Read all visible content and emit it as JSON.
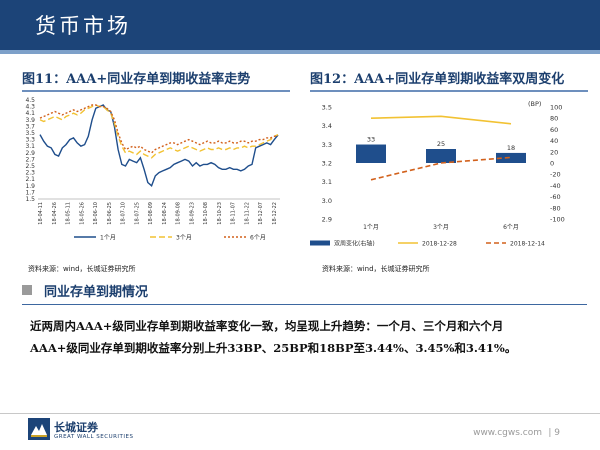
{
  "header": {
    "title": "货币市场"
  },
  "figure11": {
    "title": "图11：AAA+同业存单到期收益率走势",
    "source": "资料来源：wind，长城证券研究所",
    "chart_data": {
      "type": "line",
      "yticks": [
        "4.5",
        "4.3",
        "4.1",
        "3.9",
        "3.7",
        "3.5",
        "3.3",
        "3.1",
        "2.9",
        "2.7",
        "2.5",
        "2.3",
        "2.1",
        "1.9",
        "1.7",
        "1.5"
      ],
      "ylim": [
        1.5,
        4.5
      ],
      "xticks": [
        "18-04-11",
        "18-04-26",
        "18-05-11",
        "18-05-26",
        "18-06-10",
        "18-06-25",
        "18-07-10",
        "18-07-25",
        "18-08-09",
        "18-08-24",
        "18-09-08",
        "18-09-23",
        "18-10-08",
        "18-10-23",
        "18-11-07",
        "18-11-22",
        "18-12-07",
        "18-12-22"
      ],
      "legend_position": "bottom",
      "series": [
        {
          "name": "1个月",
          "color": "#1f4e8c",
          "dash": "solid",
          "values": [
            3.45,
            3.25,
            3.1,
            3.05,
            2.85,
            2.8,
            3.05,
            3.15,
            3.3,
            3.35,
            3.2,
            3.1,
            3.15,
            3.4,
            3.9,
            4.25,
            4.3,
            4.35,
            4.2,
            4.15,
            3.7,
            3.0,
            2.55,
            2.5,
            2.7,
            2.65,
            2.6,
            2.75,
            2.4,
            2.0,
            1.9,
            2.2,
            2.3,
            2.35,
            2.4,
            2.45,
            2.55,
            2.6,
            2.65,
            2.7,
            2.65,
            2.5,
            2.6,
            2.5,
            2.55,
            2.55,
            2.6,
            2.55,
            2.45,
            2.4,
            2.4,
            2.45,
            2.4,
            2.4,
            2.35,
            2.4,
            2.5,
            2.55,
            3.05,
            3.1,
            3.15,
            3.2,
            3.15,
            3.3,
            3.44
          ]
        },
        {
          "name": "3个月",
          "color": "#f2c233",
          "dash": "6,3",
          "values": [
            3.9,
            3.85,
            3.9,
            3.95,
            4.0,
            3.95,
            3.9,
            4.0,
            4.05,
            4.1,
            4.05,
            4.1,
            4.2,
            4.25,
            4.3,
            4.35,
            4.3,
            4.3,
            4.2,
            4.1,
            3.8,
            3.4,
            3.1,
            2.9,
            2.95,
            2.9,
            2.85,
            2.95,
            2.85,
            2.8,
            2.75,
            2.85,
            2.9,
            2.95,
            3.0,
            3.05,
            3.0,
            2.95,
            3.0,
            3.05,
            3.1,
            3.05,
            3.0,
            2.95,
            3.0,
            3.05,
            3.0,
            3.0,
            3.05,
            3.0,
            3.0,
            3.05,
            3.0,
            3.05,
            3.05,
            3.1,
            3.05,
            3.1,
            3.1,
            3.15,
            3.2,
            3.25,
            3.3,
            3.4,
            3.45
          ]
        },
        {
          "name": "6个月",
          "color": "#d2611c",
          "dash": "2,2",
          "values": [
            3.95,
            4.0,
            4.05,
            4.1,
            4.15,
            4.1,
            4.05,
            4.1,
            4.15,
            4.2,
            4.15,
            4.2,
            4.25,
            4.3,
            4.35,
            4.35,
            4.3,
            4.3,
            4.25,
            4.15,
            3.9,
            3.5,
            3.2,
            3.0,
            3.05,
            3.1,
            3.05,
            3.1,
            3.0,
            2.95,
            2.9,
            3.0,
            3.05,
            3.1,
            3.15,
            3.2,
            3.2,
            3.15,
            3.2,
            3.25,
            3.3,
            3.25,
            3.2,
            3.15,
            3.2,
            3.25,
            3.2,
            3.2,
            3.25,
            3.2,
            3.2,
            3.25,
            3.2,
            3.2,
            3.25,
            3.25,
            3.2,
            3.25,
            3.25,
            3.3,
            3.3,
            3.35,
            3.35,
            3.4,
            3.41
          ]
        }
      ]
    }
  },
  "figure12": {
    "title": "图12：AAA+同业存单到期收益率双周变化",
    "source": "资料来源：wind，长城证券研究所",
    "chart_data": {
      "type": "bar",
      "categories": [
        "1个月",
        "3个月",
        "6个月"
      ],
      "left_axis": {
        "ylim": [
          2.9,
          3.5
        ],
        "ticks": [
          "3.5",
          "3.4",
          "3.3",
          "3.2",
          "3.1",
          "3.0",
          "2.9"
        ]
      },
      "right_axis": {
        "unit": "(BP)",
        "ylim": [
          -100,
          100
        ],
        "ticks": [
          "100",
          "80",
          "60",
          "40",
          "20",
          "0",
          "-20",
          "-40",
          "-60",
          "-80",
          "-100"
        ]
      },
      "legend_position": "bottom",
      "series": [
        {
          "name": "双周变化(右轴)",
          "axis": "right",
          "kind": "bar",
          "color": "#1f4e8c",
          "values": [
            33,
            25,
            18
          ]
        },
        {
          "name": "2018-12-28",
          "axis": "left",
          "kind": "line",
          "color": "#f2c233",
          "values": [
            3.44,
            3.45,
            3.41
          ]
        },
        {
          "name": "2018-12-14",
          "axis": "left",
          "kind": "line",
          "color": "#d2611c",
          "dash": "5,3",
          "values": [
            3.11,
            3.2,
            3.23
          ]
        }
      ]
    }
  },
  "section": {
    "title": "同业存单到期情况"
  },
  "body": {
    "line1": "近两周内AAA+级同业存单到期收益率变化一致，均呈现上升趋势：一个月、三个月和六个月",
    "line2": "AAA+级同业存单到期收益率分别上升33BP、25BP和18BP至3.44%、3.45%和3.41%。"
  },
  "footer": {
    "logo_cn": "长城证券",
    "logo_en": "GREAT WALL SECURITIES",
    "url": "www.cgws.com",
    "page": "| 9"
  }
}
